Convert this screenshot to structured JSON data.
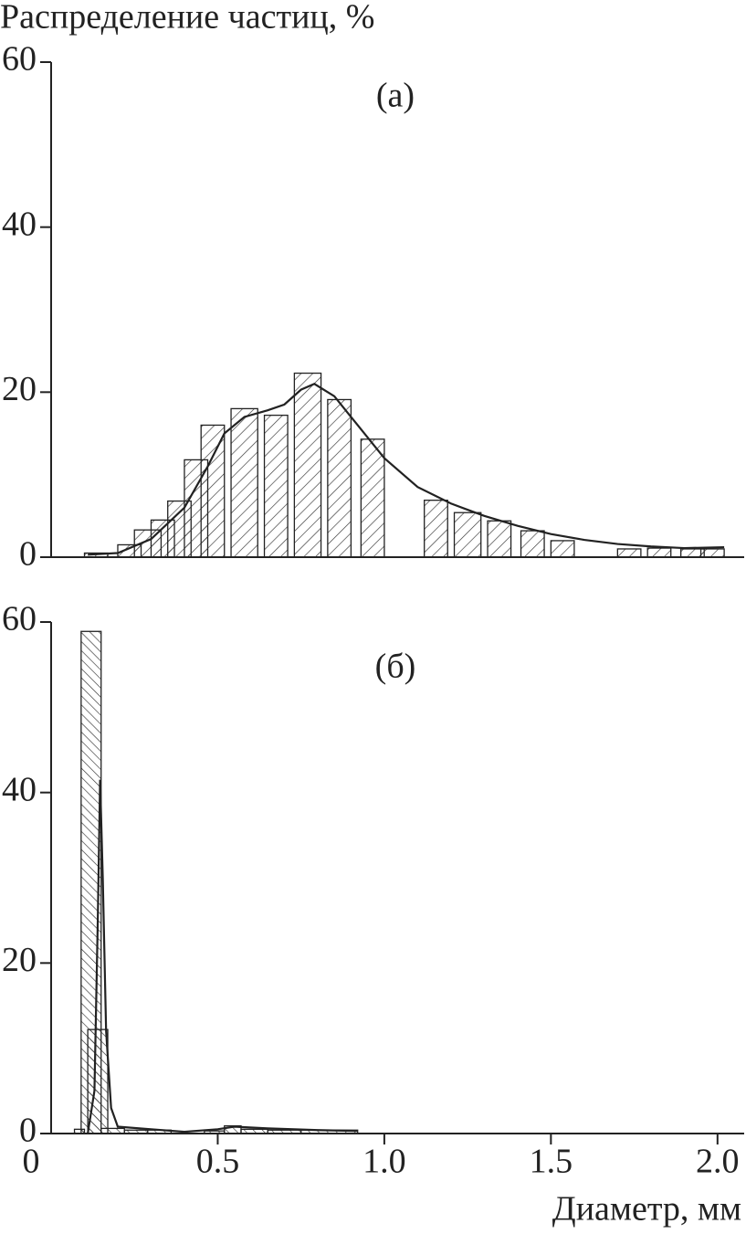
{
  "chart_data": [
    {
      "type": "histogram",
      "ylabel": "Распределение частиц, %",
      "panel_label": "(а)",
      "xlim": [
        0,
        2.08
      ],
      "ylim": [
        0,
        60
      ],
      "yticks": [
        0,
        20,
        40,
        60
      ],
      "bars": [
        {
          "x0": 0.1,
          "x1": 0.17,
          "value": 0.5
        },
        {
          "x0": 0.2,
          "x1": 0.27,
          "value": 1.5
        },
        {
          "x0": 0.25,
          "x1": 0.33,
          "value": 3.3
        },
        {
          "x0": 0.3,
          "x1": 0.37,
          "value": 4.5
        },
        {
          "x0": 0.35,
          "x1": 0.42,
          "value": 6.8
        },
        {
          "x0": 0.4,
          "x1": 0.47,
          "value": 11.8
        },
        {
          "x0": 0.45,
          "x1": 0.52,
          "value": 16
        },
        {
          "x0": 0.54,
          "x1": 0.62,
          "value": 18
        },
        {
          "x0": 0.64,
          "x1": 0.71,
          "value": 17.2
        },
        {
          "x0": 0.73,
          "x1": 0.81,
          "value": 22.3
        },
        {
          "x0": 0.83,
          "x1": 0.9,
          "value": 19.1
        },
        {
          "x0": 0.93,
          "x1": 1.0,
          "value": 14.3
        },
        {
          "x0": 1.12,
          "x1": 1.19,
          "value": 6.9
        },
        {
          "x0": 1.21,
          "x1": 1.29,
          "value": 5.4
        },
        {
          "x0": 1.31,
          "x1": 1.38,
          "value": 4.4
        },
        {
          "x0": 1.41,
          "x1": 1.48,
          "value": 3.2
        },
        {
          "x0": 1.5,
          "x1": 1.57,
          "value": 2
        },
        {
          "x0": 1.7,
          "x1": 1.77,
          "value": 1
        },
        {
          "x0": 1.79,
          "x1": 1.86,
          "value": 1.1
        },
        {
          "x0": 1.89,
          "x1": 1.96,
          "value": 1
        },
        {
          "x0": 1.95,
          "x1": 2.02,
          "value": 1
        }
      ],
      "curve": {
        "x": [
          0.11,
          0.2,
          0.3,
          0.4,
          0.47,
          0.52,
          0.58,
          0.65,
          0.7,
          0.75,
          0.79,
          0.85,
          0.92,
          1.0,
          1.1,
          1.2,
          1.3,
          1.4,
          1.5,
          1.6,
          1.7,
          1.8,
          1.9,
          2.02
        ],
        "y": [
          0.3,
          0.5,
          2.2,
          6,
          11,
          15,
          17,
          17.8,
          18.5,
          20.3,
          21,
          19.5,
          16,
          12,
          8.5,
          6.5,
          5,
          3.8,
          2.8,
          2.1,
          1.6,
          1.3,
          1.1,
          1.2
        ]
      }
    },
    {
      "type": "histogram",
      "panel_label": "(б)",
      "xlabel": "Диаметр, мм",
      "xlim": [
        0,
        2.08
      ],
      "ylim": [
        0,
        60
      ],
      "yticks": [
        0,
        20,
        40,
        60
      ],
      "xticks": [
        0,
        0.5,
        {
          "value": 1,
          "label": "1.0"
        },
        1.5,
        {
          "value": 2,
          "label": "2.0"
        }
      ],
      "bars": [
        {
          "x0": 0.07,
          "x1": 0.1,
          "value": 0.5
        },
        {
          "x0": 0.09,
          "x1": 0.15,
          "value": 58.9
        },
        {
          "x0": 0.11,
          "x1": 0.17,
          "value": 12.2
        },
        {
          "x0": 0.15,
          "x1": 0.22,
          "value": 0.6
        },
        {
          "x0": 0.22,
          "x1": 0.29,
          "value": 0.4
        },
        {
          "x0": 0.29,
          "x1": 0.36,
          "value": 0.4
        },
        {
          "x0": 0.46,
          "x1": 0.52,
          "value": 0.3
        },
        {
          "x0": 0.52,
          "x1": 0.57,
          "value": 0.9
        },
        {
          "x0": 0.57,
          "x1": 0.65,
          "value": 0.5
        },
        {
          "x0": 0.65,
          "x1": 0.75,
          "value": 0.4
        },
        {
          "x0": 0.75,
          "x1": 0.92,
          "value": 0.4
        }
      ],
      "curve": {
        "x": [
          0.11,
          0.13,
          0.14,
          0.147,
          0.155,
          0.165,
          0.18,
          0.2,
          0.3,
          0.4,
          0.5,
          0.55,
          0.65,
          0.8,
          0.92
        ],
        "y": [
          0,
          5,
          25,
          41.5,
          30,
          12,
          3,
          0.8,
          0.5,
          0.2,
          0.5,
          0.8,
          0.6,
          0.4,
          0.3
        ]
      }
    }
  ]
}
